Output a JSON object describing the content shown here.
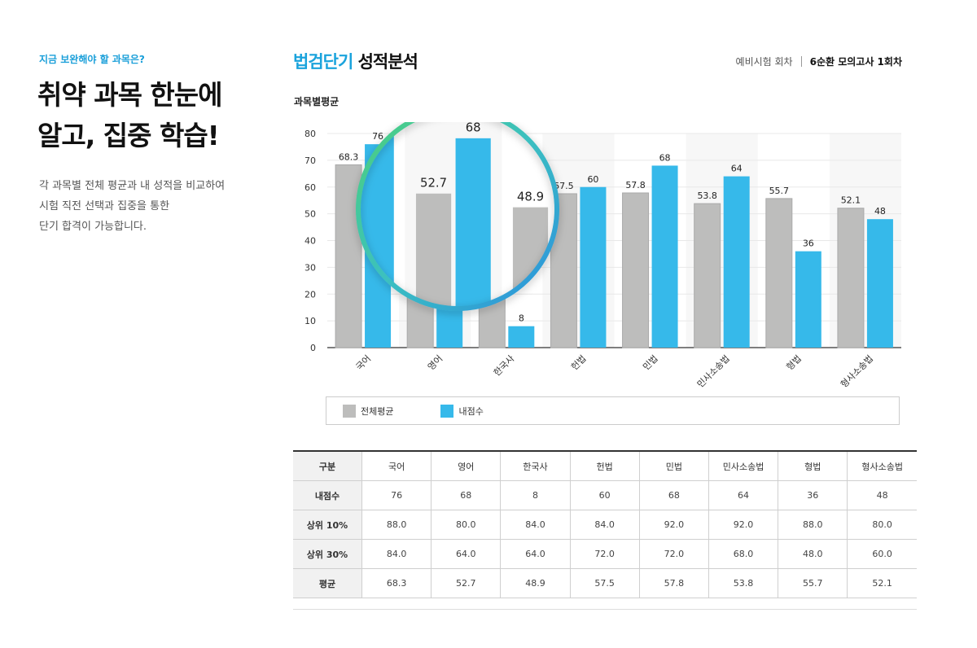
{
  "left": {
    "kicker": "지금 보완해야 할 과목은?",
    "headline_lines": [
      "취약 과목 한눈에",
      "알고, 집중 학습!"
    ],
    "desc_lines": [
      "각 과목별 전체 평균과 내 성적을 비교하여",
      "시험 직전 선택과 집중을 통한",
      "단기 합격이 가능합니다."
    ]
  },
  "header": {
    "brand_accent": "법검단기",
    "brand_rest": "성적분석",
    "exam_type": "예비시험 회차",
    "exam_current": "6순환 모의고사 1회차"
  },
  "chart_title": "과목별평균",
  "chart_data": {
    "type": "bar",
    "categories": [
      "국어",
      "영어",
      "한국사",
      "헌법",
      "민법",
      "민사소송법",
      "형법",
      "형사소송법"
    ],
    "series": [
      {
        "name": "전체평균",
        "color": "#bdbdbc",
        "values": [
          68.3,
          52.7,
          48.9,
          57.5,
          57.8,
          53.8,
          55.7,
          52.1
        ]
      },
      {
        "name": "내점수",
        "color": "#36b9ea",
        "values": [
          76,
          68,
          8,
          60,
          68,
          64,
          36,
          48
        ]
      }
    ],
    "ylim": [
      0,
      80
    ],
    "yticks": [
      0,
      10,
      20,
      30,
      40,
      50,
      60,
      70,
      80
    ],
    "magnifier": {
      "categories": [
        "영어",
        "한국사"
      ]
    }
  },
  "legend": [
    {
      "label": "전체평균",
      "color": "#bdbdbc"
    },
    {
      "label": "내점수",
      "color": "#36b9ea"
    }
  ],
  "table": {
    "headers": [
      "구분",
      "국어",
      "영어",
      "한국사",
      "헌법",
      "민법",
      "민사소송법",
      "형법",
      "형사소송법"
    ],
    "rows": [
      [
        "내점수",
        "76",
        "68",
        "8",
        "60",
        "68",
        "64",
        "36",
        "48"
      ],
      [
        "상위 10%",
        "88.0",
        "80.0",
        "84.0",
        "84.0",
        "92.0",
        "92.0",
        "88.0",
        "80.0"
      ],
      [
        "상위 30%",
        "84.0",
        "64.0",
        "64.0",
        "72.0",
        "72.0",
        "68.0",
        "48.0",
        "60.0"
      ],
      [
        "평균",
        "68.3",
        "52.7",
        "48.9",
        "57.5",
        "57.8",
        "53.8",
        "55.7",
        "52.1"
      ]
    ]
  }
}
